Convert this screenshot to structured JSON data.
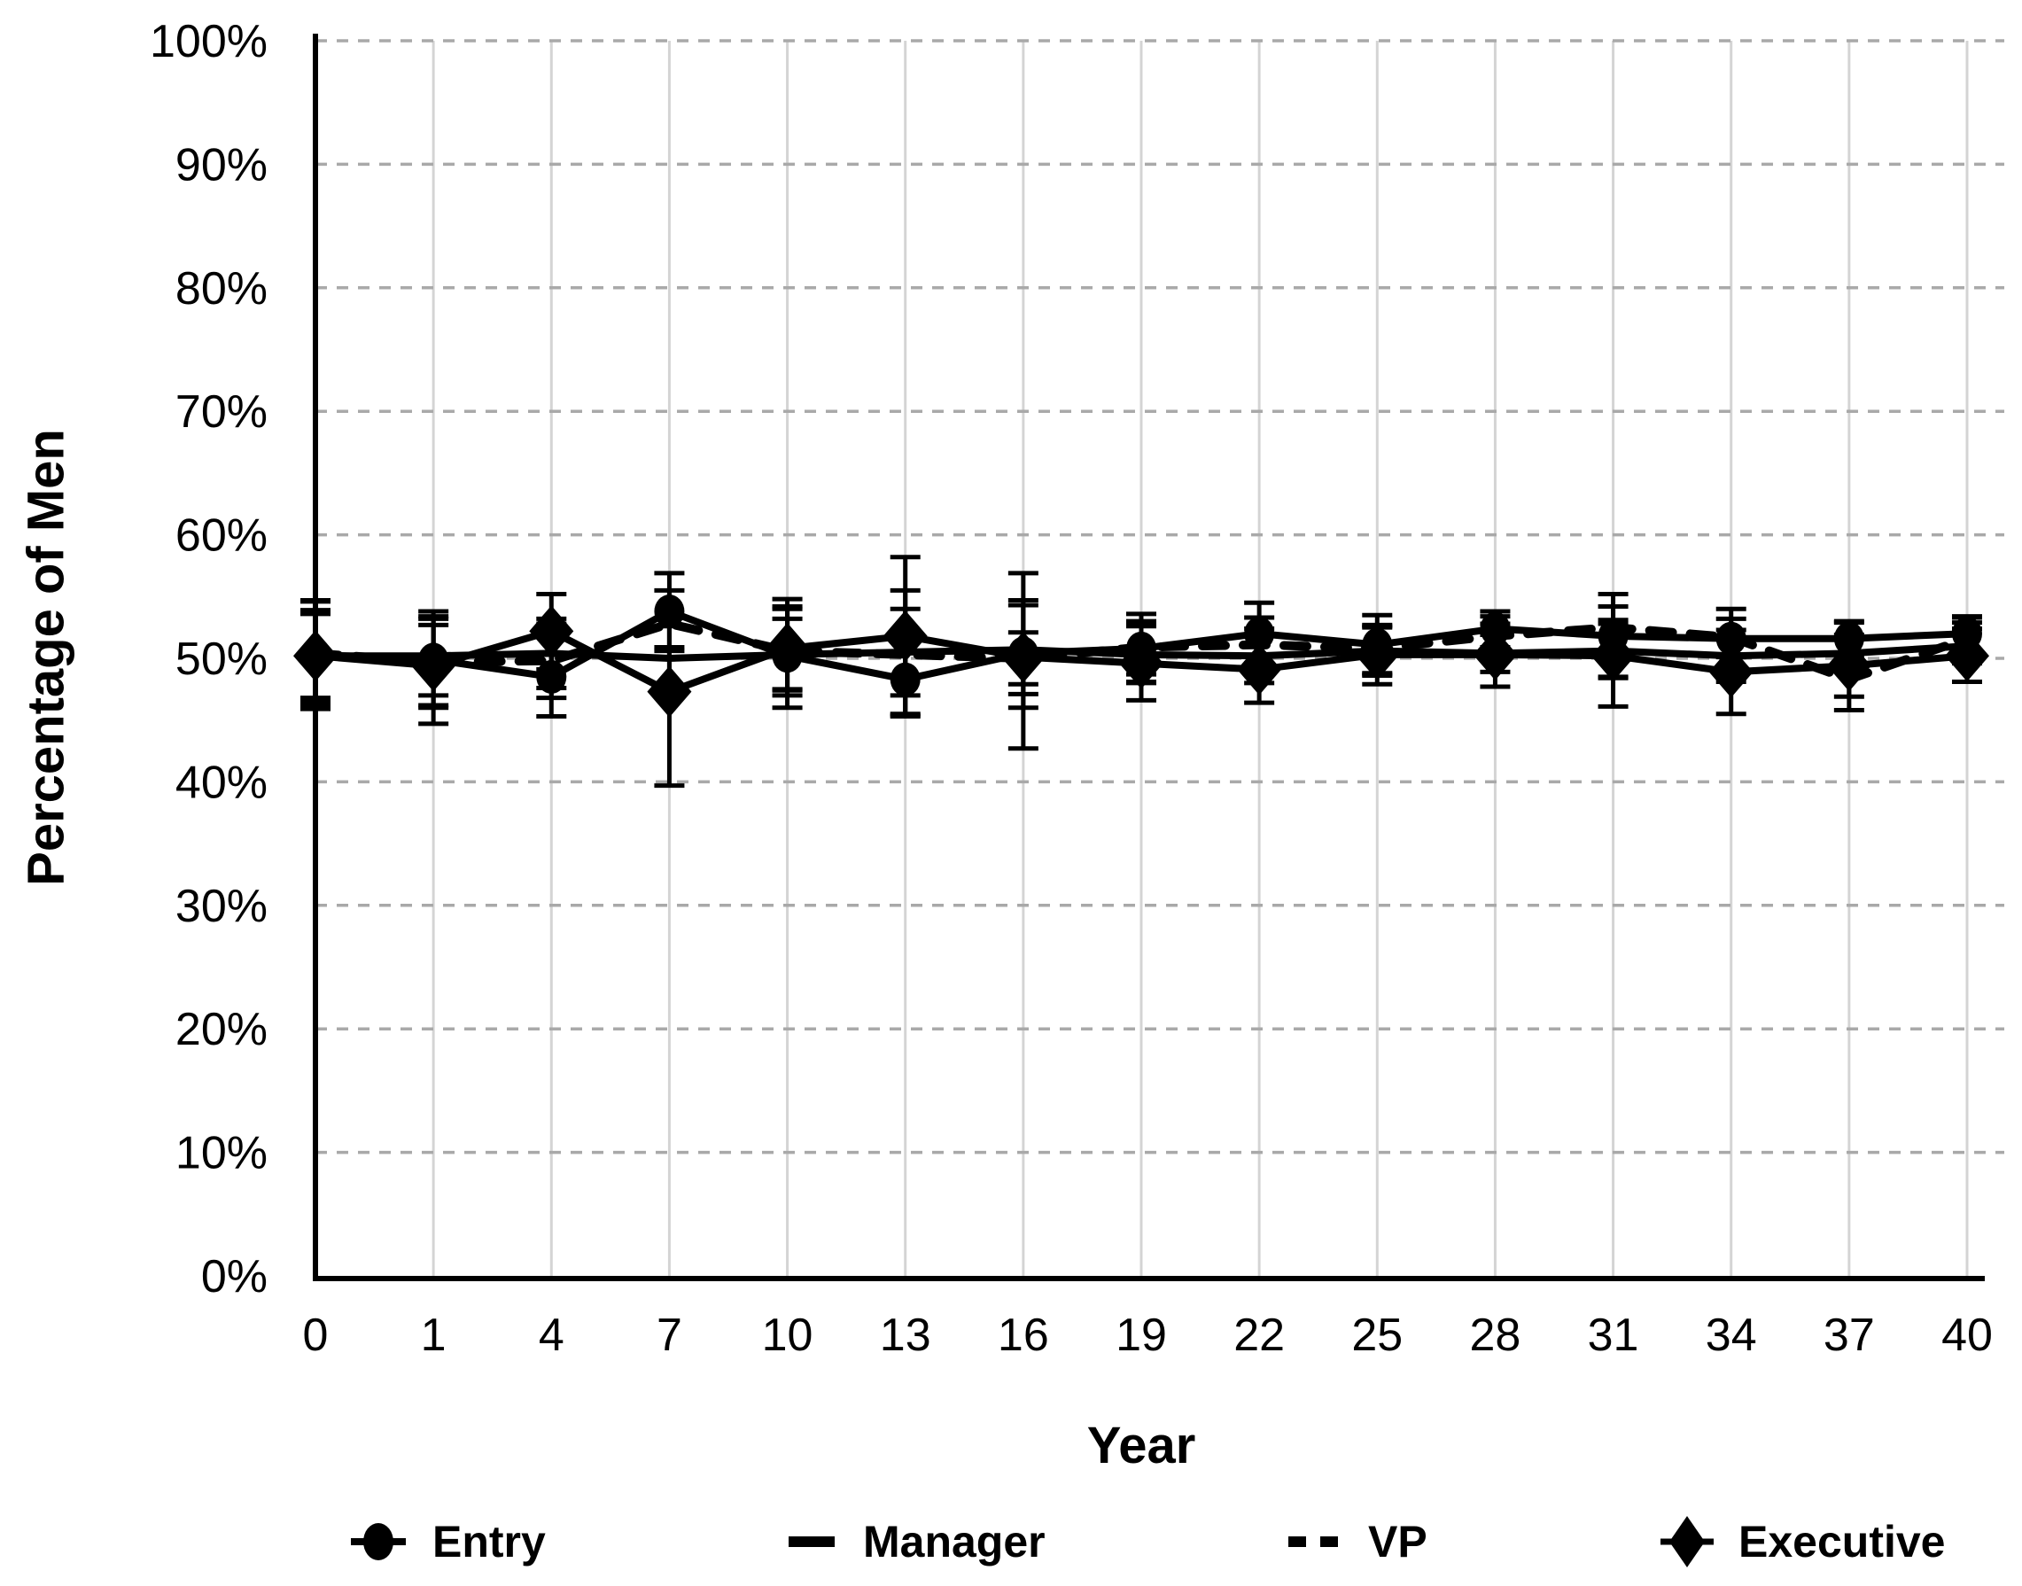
{
  "chart_data": {
    "type": "line",
    "title": "",
    "xlabel": "Year",
    "ylabel": "Percentage of Men",
    "categories": [
      "0",
      "1",
      "4",
      "7",
      "10",
      "13",
      "16",
      "19",
      "22",
      "25",
      "28",
      "31",
      "34",
      "37",
      "40"
    ],
    "y_tick_labels": [
      "0%",
      "10%",
      "20%",
      "30%",
      "40%",
      "50%",
      "60%",
      "70%",
      "80%",
      "90%",
      "100%"
    ],
    "ylim": [
      0,
      100
    ],
    "y_tick_step": 10,
    "grid": {
      "horizontal": "dashed",
      "vertical": "solid"
    },
    "legend_position": "bottom",
    "colors": {
      "foreground": "#000000",
      "grid_horizontal": "#a9a9a9",
      "grid_vertical": "#d4d4d4",
      "background": "#ffffff"
    },
    "series": [
      {
        "name": "Entry",
        "marker": "circle",
        "line_style": "solid",
        "color": "#000000",
        "values": [
          50.3,
          49.9,
          48.5,
          53.8,
          50.2,
          48.3,
          50.4,
          50.8,
          52.0,
          51.1,
          52.4,
          51.8,
          51.6,
          51.6,
          52.0
        ],
        "err_up": [
          4.4,
          3.9,
          3.3,
          3.1,
          4.6,
          3.9,
          4.3,
          2.8,
          2.5,
          2.4,
          1.4,
          3.4,
          2.4,
          1.4,
          1.4
        ],
        "err_down": [
          4.4,
          3.9,
          3.2,
          3.2,
          4.2,
          3.0,
          4.4,
          2.7,
          2.4,
          2.5,
          1.5,
          3.3,
          2.4,
          1.5,
          1.4
        ]
      },
      {
        "name": "Manager",
        "marker": "none",
        "line_style": "solid",
        "color": "#000000",
        "values": [
          50.2,
          50.2,
          50.4,
          50.0,
          50.3,
          50.5,
          50.7,
          50.3,
          50.2,
          50.6,
          50.4,
          50.6,
          50.2,
          50.4,
          51.0
        ],
        "err_up": [
          3.4,
          3.2,
          2.8,
          2.6,
          2.9,
          3.5,
          3.6,
          2.3,
          2.2,
          1.9,
          1.5,
          2.2,
          2.1,
          1.5,
          1.4
        ],
        "err_down": [
          3.4,
          3.2,
          2.8,
          2.6,
          2.9,
          3.5,
          3.6,
          2.3,
          2.2,
          1.9,
          1.5,
          2.2,
          2.1,
          1.5,
          1.4
        ]
      },
      {
        "name": "VP",
        "marker": "none",
        "line_style": "dashed",
        "color": "#000000",
        "values": [
          50.4,
          49.7,
          49.8,
          52.8,
          50.6,
          50.3,
          50.0,
          50.9,
          51.1,
          50.8,
          51.8,
          52.5,
          51.7,
          48.3,
          51.6
        ],
        "err_up": [
          4.2,
          3.5,
          3.0,
          2.7,
          3.6,
          5.2,
          2.1,
          2.1,
          2.2,
          1.9,
          1.6,
          1.7,
          1.5,
          1.3,
          1.3
        ],
        "err_down": [
          4.2,
          3.5,
          3.0,
          2.7,
          3.6,
          4.9,
          2.1,
          2.2,
          2.3,
          2.0,
          1.7,
          1.8,
          1.6,
          1.4,
          1.3
        ]
      },
      {
        "name": "Executive",
        "marker": "diamond",
        "line_style": "solid",
        "color": "#000000",
        "values": [
          50.2,
          49.4,
          52.2,
          47.3,
          50.8,
          51.8,
          50.1,
          49.6,
          49.1,
          50.3,
          50.3,
          50.2,
          48.9,
          49.4,
          50.2
        ],
        "err_up": [
          3.7,
          3.3,
          3.0,
          3.6,
          3.2,
          6.4,
          6.8,
          3.1,
          2.8,
          2.3,
          2.5,
          2.9,
          2.7,
          3.5,
          3.1
        ],
        "err_down": [
          3.7,
          4.7,
          3.1,
          7.6,
          3.3,
          6.3,
          7.4,
          3.0,
          2.7,
          2.4,
          2.6,
          4.1,
          3.4,
          3.6,
          2.1
        ]
      }
    ]
  }
}
